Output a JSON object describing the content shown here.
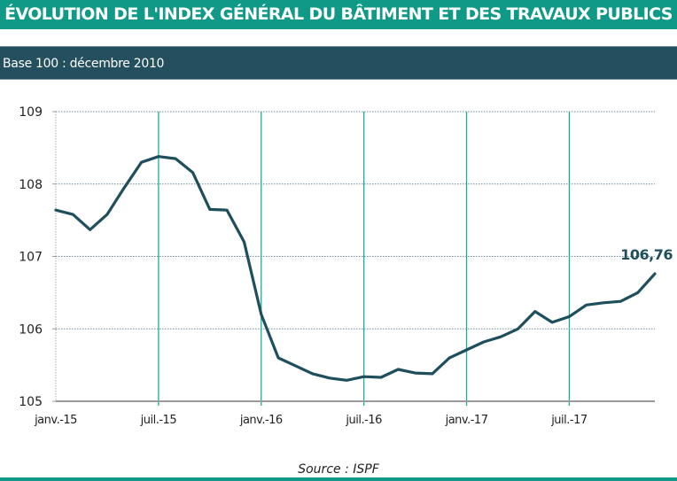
{
  "header": {
    "title": "ÉVOLUTION DE L'INDEX GÉNÉRAL DU BÂTIMENT ET DES TRAVAUX PUBLICS",
    "subtitle": "Base 100 : décembre 2010"
  },
  "footer": {
    "source": "Source : ISPF"
  },
  "colors": {
    "title_bg": "#0f9a87",
    "subtitle_bg": "#234f5e",
    "line": "#1f4f5c",
    "vertical_grid": "#1aae9a",
    "horizontal_grid": "#6a8fa0"
  },
  "chart_data": {
    "type": "line",
    "title": "",
    "xlabel": "",
    "ylabel": "",
    "ylim": [
      105,
      109
    ],
    "yticks": [
      "105",
      "106",
      "107",
      "108",
      "109"
    ],
    "xticks": [
      "janv.-15",
      "juil.-15",
      "janv.-16",
      "juil.-16",
      "janv.-17",
      "juil.-17"
    ],
    "grid": "horizontal dotted, vertical solid every 6 months",
    "x": [
      "2015-01",
      "2015-02",
      "2015-03",
      "2015-04",
      "2015-05",
      "2015-06",
      "2015-07",
      "2015-08",
      "2015-09",
      "2015-10",
      "2015-11",
      "2015-12",
      "2016-01",
      "2016-02",
      "2016-03",
      "2016-04",
      "2016-05",
      "2016-06",
      "2016-07",
      "2016-08",
      "2016-09",
      "2016-10",
      "2016-11",
      "2016-12",
      "2017-01",
      "2017-02",
      "2017-03",
      "2017-04",
      "2017-05",
      "2017-06",
      "2017-07",
      "2017-08",
      "2017-09",
      "2017-10",
      "2017-11",
      "2017-12"
    ],
    "series": [
      {
        "values": [
          107.64,
          107.58,
          107.37,
          107.58,
          107.95,
          108.3,
          108.38,
          108.35,
          108.16,
          107.65,
          107.64,
          107.2,
          106.2,
          105.6,
          105.49,
          105.38,
          105.32,
          105.29,
          105.34,
          105.33,
          105.44,
          105.39,
          105.38,
          105.6,
          105.71,
          105.82,
          105.89,
          106.0,
          106.24,
          106.09,
          106.17,
          106.33,
          106.36,
          106.38,
          106.5,
          106.76
        ]
      }
    ],
    "annotations": [
      {
        "text": "106,76",
        "x": "2017-12",
        "y": 106.76
      }
    ]
  }
}
